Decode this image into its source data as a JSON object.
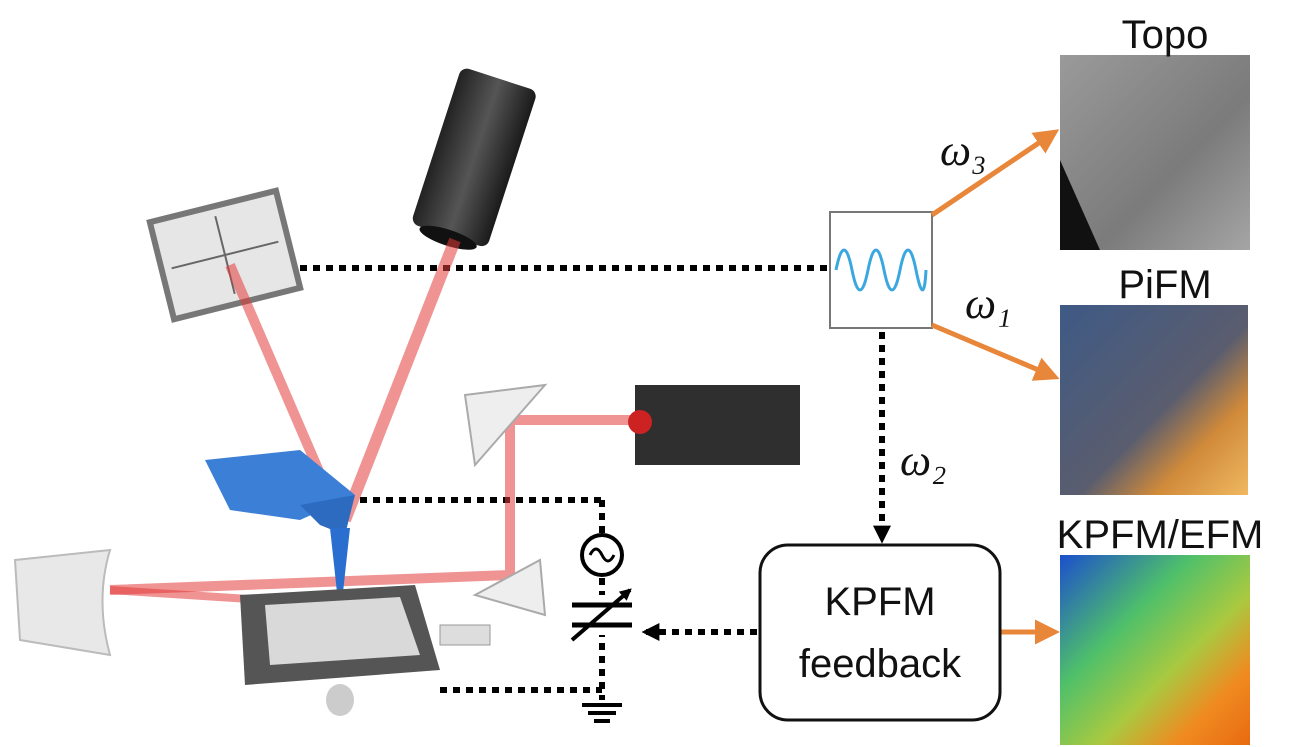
{
  "panels": [
    {
      "label": "Topo"
    },
    {
      "label": "PiFM"
    },
    {
      "label": "KPFM/EFM"
    }
  ],
  "frequencies": [
    "ω₃",
    "ω₁",
    "ω₂"
  ],
  "feedback_box": {
    "lines": [
      "KPFM",
      "feedback"
    ]
  }
}
